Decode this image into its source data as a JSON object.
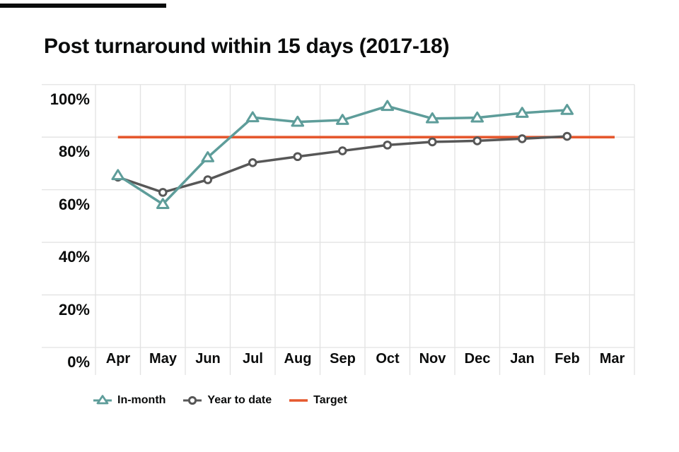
{
  "title": "Post turnaround within 15 days (2017-18)",
  "colors": {
    "in_month": "#5e9d9a",
    "year_to_date": "#575757",
    "target": "#e5582e",
    "grid": "#e2e2e2",
    "text": "#0b0c0c",
    "marker_fill": "#ffffff",
    "top_bar": "#0b0c0c"
  },
  "chart_data": {
    "type": "line",
    "title": "Post turnaround within 15 days (2017-18)",
    "categories": [
      "Apr",
      "May",
      "Jun",
      "Jul",
      "Aug",
      "Sep",
      "Oct",
      "Nov",
      "Dec",
      "Jan",
      "Feb",
      "Mar"
    ],
    "y_tick_labels": [
      "100%",
      "80%",
      "60%",
      "40%",
      "20%",
      "0%"
    ],
    "ylim": [
      0,
      100
    ],
    "y_tick_step": 20,
    "grid": true,
    "legend_position": "bottom",
    "series": [
      {
        "name": "In-month",
        "marker": "triangle",
        "color": "#5e9d9a",
        "values": [
          65.5,
          54.5,
          72.3,
          87.5,
          85.8,
          86.5,
          91.8,
          87.1,
          87.4,
          89.2,
          90.3,
          null
        ]
      },
      {
        "name": "Year to date",
        "marker": "circle",
        "color": "#575757",
        "values": [
          64.8,
          59.0,
          63.8,
          70.3,
          72.6,
          74.8,
          77.0,
          78.2,
          78.6,
          79.4,
          80.3,
          null
        ]
      }
    ],
    "target": {
      "name": "Target",
      "color": "#e5582e",
      "value": 80
    }
  }
}
